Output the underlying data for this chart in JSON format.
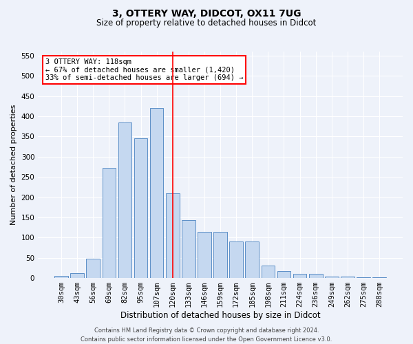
{
  "title": "3, OTTERY WAY, DIDCOT, OX11 7UG",
  "subtitle": "Size of property relative to detached houses in Didcot",
  "xlabel": "Distribution of detached houses by size in Didcot",
  "ylabel": "Number of detached properties",
  "categories": [
    "30sqm",
    "43sqm",
    "56sqm",
    "69sqm",
    "82sqm",
    "95sqm",
    "107sqm",
    "120sqm",
    "133sqm",
    "146sqm",
    "159sqm",
    "172sqm",
    "185sqm",
    "198sqm",
    "211sqm",
    "224sqm",
    "236sqm",
    "249sqm",
    "262sqm",
    "275sqm",
    "288sqm"
  ],
  "values": [
    5,
    12,
    48,
    272,
    385,
    345,
    420,
    210,
    143,
    115,
    115,
    90,
    90,
    30,
    18,
    10,
    10,
    3,
    3,
    1,
    2
  ],
  "bar_color": "#c5d8f0",
  "bar_edge_color": "#5c8fc7",
  "vline_color": "red",
  "annotation_title": "3 OTTERY WAY: 118sqm",
  "annotation_line1": "← 67% of detached houses are smaller (1,420)",
  "annotation_line2": "33% of semi-detached houses are larger (694) →",
  "annotation_box_color": "white",
  "annotation_box_edge": "red",
  "footer1": "Contains HM Land Registry data © Crown copyright and database right 2024.",
  "footer2": "Contains public sector information licensed under the Open Government Licence v3.0.",
  "bg_color": "#eef2fa",
  "plot_bg_color": "#eef2fa",
  "ylim": [
    0,
    560
  ],
  "yticks": [
    0,
    50,
    100,
    150,
    200,
    250,
    300,
    350,
    400,
    450,
    500,
    550
  ],
  "title_fontsize": 10,
  "subtitle_fontsize": 8.5,
  "ylabel_fontsize": 8,
  "xlabel_fontsize": 8.5,
  "tick_fontsize": 7.5,
  "footer_fontsize": 6,
  "ann_fontsize": 7.5
}
